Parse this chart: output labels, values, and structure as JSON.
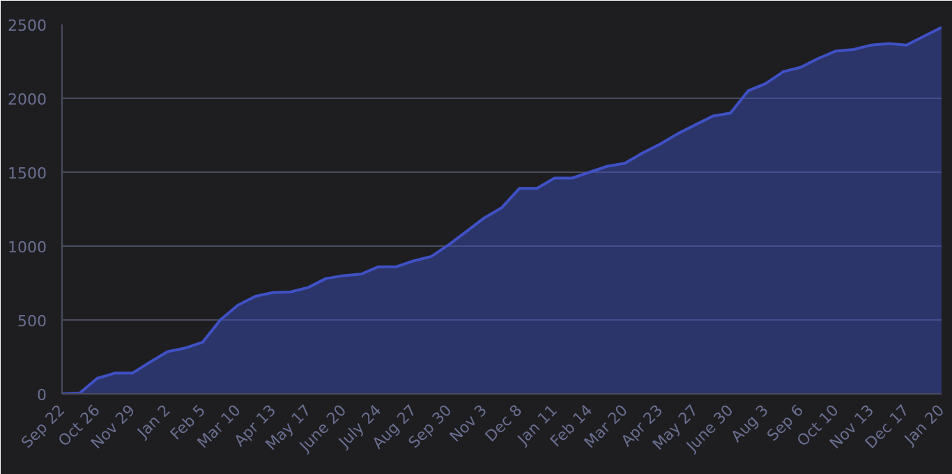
{
  "chart_data": {
    "type": "area",
    "categories": [
      "Sep 22",
      null,
      "Oct 26",
      null,
      "Nov 29",
      null,
      "Jan 2",
      null,
      "Feb 5",
      null,
      "Mar 10",
      null,
      "Apr 13",
      null,
      "May 17",
      null,
      "June 20",
      null,
      "July 24",
      null,
      "Aug 27",
      null,
      "Sep 30",
      null,
      "Nov 3",
      null,
      "Dec 8",
      null,
      "Jan 11",
      null,
      "Feb 14",
      null,
      "Mar 20",
      null,
      "Apr 23",
      null,
      "May 27",
      null,
      "June 30",
      null,
      "Aug 3",
      null,
      "Sep 6",
      null,
      "Oct 10",
      null,
      "Nov 13",
      null,
      "Dec 17",
      null,
      "Jan 20"
    ],
    "series": [
      {
        "color": "#3f51c4",
        "values": [
          0,
          5,
          105,
          140,
          140,
          215,
          285,
          310,
          350,
          500,
          600,
          660,
          685,
          690,
          720,
          780,
          800,
          810,
          860,
          860,
          900,
          930,
          1010,
          1100,
          1190,
          1260,
          1390,
          1390,
          1460,
          1460,
          1500,
          1540,
          1560,
          1630,
          1690,
          1760,
          1820,
          1880,
          1900,
          2050,
          2100,
          2180,
          2210,
          2270,
          2320,
          2330,
          2360,
          2370,
          2360,
          2420,
          2480
        ]
      }
    ],
    "ylim": [
      0,
      2500
    ],
    "yticks": [
      0,
      500,
      1000,
      1500,
      2000,
      2500
    ],
    "grid": "y"
  }
}
